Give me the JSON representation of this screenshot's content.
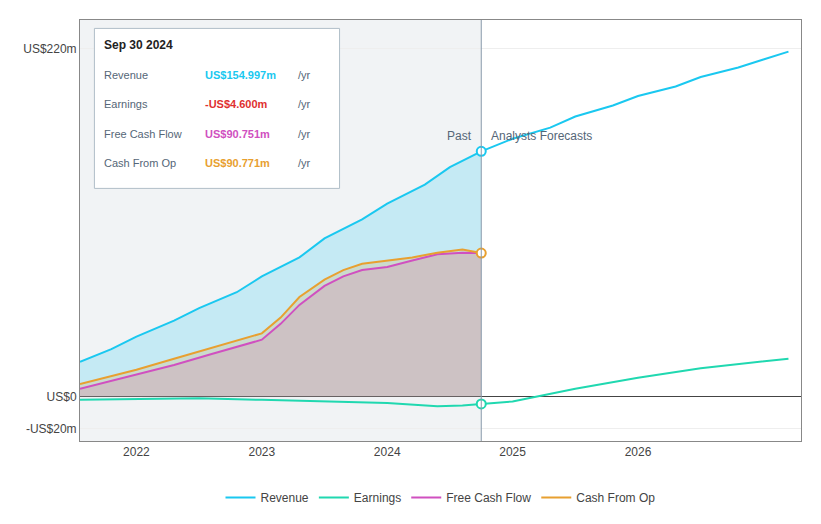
{
  "chart_data": {
    "type": "line",
    "xlim": [
      2021.55,
      2027.3
    ],
    "xticks": [
      2022,
      2023,
      2024,
      2025,
      2026
    ],
    "ylim": [
      -28,
      238
    ],
    "yticks": [
      {
        "value": -20,
        "label": "-US$20m"
      },
      {
        "value": 0,
        "label": "US$0"
      },
      {
        "value": 220,
        "label": "US$220m"
      }
    ],
    "grid": true,
    "legend": "bottom",
    "divider_x": 2024.75,
    "series": [
      {
        "name": "Revenue",
        "color": "#1ac8f0",
        "fill": "past",
        "x": [
          2021.55,
          2021.8,
          2022.0,
          2022.3,
          2022.5,
          2022.8,
          2023.0,
          2023.3,
          2023.5,
          2023.8,
          2024.0,
          2024.3,
          2024.5,
          2024.75,
          2025.0,
          2025.3,
          2025.5,
          2025.8,
          2026.0,
          2026.3,
          2026.5,
          2026.8,
          2027.0,
          2027.2
        ],
        "values": [
          22,
          30,
          38,
          48,
          56,
          66,
          76,
          88,
          100,
          112,
          122,
          134,
          145,
          155,
          163,
          170,
          177,
          184,
          190,
          196,
          202,
          208,
          213,
          218
        ]
      },
      {
        "name": "Earnings",
        "color": "#20d8b0",
        "fill": "none",
        "x": [
          2021.55,
          2022.0,
          2022.5,
          2023.0,
          2023.5,
          2024.0,
          2024.4,
          2024.6,
          2024.75,
          2025.0,
          2025.5,
          2026.0,
          2026.5,
          2027.0,
          2027.2
        ],
        "values": [
          -2,
          -1.5,
          -1,
          -2,
          -3,
          -4,
          -6,
          -5.5,
          -4.6,
          -3,
          5,
          12,
          18,
          22,
          24
        ]
      },
      {
        "name": "Free Cash Flow",
        "color": "#d050c0",
        "fill": "all",
        "x": [
          2021.55,
          2022.0,
          2022.3,
          2022.6,
          2023.0,
          2023.15,
          2023.3,
          2023.5,
          2023.65,
          2023.8,
          2024.0,
          2024.2,
          2024.4,
          2024.6,
          2024.75
        ],
        "values": [
          5,
          14,
          20,
          27,
          36,
          46,
          58,
          70,
          76,
          80,
          82,
          86,
          90,
          91,
          90.75
        ]
      },
      {
        "name": "Cash From Op",
        "color": "#e8a030",
        "fill": "all",
        "x": [
          2021.55,
          2022.0,
          2022.3,
          2022.6,
          2023.0,
          2023.15,
          2023.3,
          2023.5,
          2023.65,
          2023.8,
          2024.0,
          2024.2,
          2024.4,
          2024.6,
          2024.75
        ],
        "values": [
          8,
          17,
          24,
          31,
          40,
          50,
          63,
          74,
          80,
          84,
          86,
          88,
          91,
          93,
          90.77
        ]
      }
    ],
    "dots": [
      {
        "x": 2024.75,
        "y": 155,
        "color": "#1ac8f0"
      },
      {
        "x": 2024.75,
        "y": -4.6,
        "color": "#20d8b0"
      },
      {
        "x": 2024.75,
        "y": 90.77,
        "color": "#e8a030"
      }
    ],
    "annotations": [
      {
        "text": "Past",
        "x": 2024.69,
        "y": 165
      },
      {
        "text": "Analysts Forecasts",
        "x": 2024.81,
        "y": 165
      }
    ],
    "tooltip": {
      "title": "Sep 30 2024",
      "rows": [
        {
          "label": "Revenue",
          "value": 154.997,
          "value_label": "US$154.997m",
          "unit": "/yr",
          "color": "#1ac8f0"
        },
        {
          "label": "Earnings",
          "value": -4.6,
          "value_label": "-US$4.600m",
          "unit": "/yr",
          "color": "#e03030"
        },
        {
          "label": "Free Cash Flow",
          "value": 90.751,
          "value_label": "US$90.751m",
          "unit": "/yr",
          "color": "#d050c0"
        },
        {
          "label": "Cash From Op",
          "value": 90.771,
          "value_label": "US$90.771m",
          "unit": "/yr",
          "color": "#e8a030"
        }
      ]
    }
  }
}
